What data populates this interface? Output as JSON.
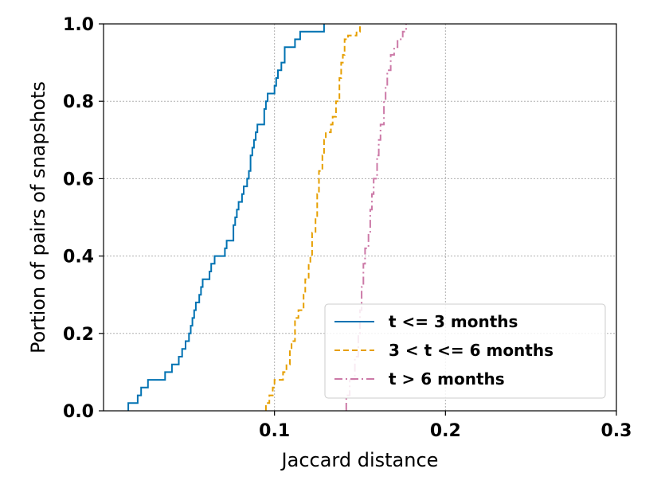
{
  "chart_data": {
    "type": "line",
    "step": true,
    "xlabel": "Jaccard distance",
    "ylabel": "Portion of pairs of snapshots",
    "xlim": [
      0.0,
      0.3
    ],
    "ylim": [
      0.0,
      1.0
    ],
    "xticks": [
      "0.1",
      "0.2",
      "0.3"
    ],
    "xtick_values": [
      0.1,
      0.2,
      0.3
    ],
    "yticks": [
      "0.0",
      "0.2",
      "0.4",
      "0.6",
      "0.8",
      "1.0"
    ],
    "ytick_values": [
      0.0,
      0.2,
      0.4,
      0.6,
      0.8,
      1.0
    ],
    "grid": true,
    "legend_position": "lower-right",
    "series": [
      {
        "name": "t <= 3 months",
        "color": "#0072b2",
        "linestyle": "solid",
        "points": [
          [
            0.0145,
            0.0
          ],
          [
            0.0145,
            0.02
          ],
          [
            0.02,
            0.02
          ],
          [
            0.02,
            0.04
          ],
          [
            0.022,
            0.04
          ],
          [
            0.022,
            0.06
          ],
          [
            0.026,
            0.06
          ],
          [
            0.026,
            0.08
          ],
          [
            0.036,
            0.08
          ],
          [
            0.036,
            0.1
          ],
          [
            0.04,
            0.1
          ],
          [
            0.04,
            0.12
          ],
          [
            0.044,
            0.12
          ],
          [
            0.044,
            0.14
          ],
          [
            0.046,
            0.14
          ],
          [
            0.046,
            0.16
          ],
          [
            0.048,
            0.16
          ],
          [
            0.048,
            0.18
          ],
          [
            0.05,
            0.18
          ],
          [
            0.05,
            0.2
          ],
          [
            0.051,
            0.2
          ],
          [
            0.051,
            0.22
          ],
          [
            0.052,
            0.22
          ],
          [
            0.052,
            0.24
          ],
          [
            0.053,
            0.24
          ],
          [
            0.053,
            0.26
          ],
          [
            0.054,
            0.26
          ],
          [
            0.054,
            0.28
          ],
          [
            0.056,
            0.28
          ],
          [
            0.056,
            0.3
          ],
          [
            0.057,
            0.3
          ],
          [
            0.057,
            0.32
          ],
          [
            0.058,
            0.32
          ],
          [
            0.058,
            0.34
          ],
          [
            0.062,
            0.34
          ],
          [
            0.062,
            0.36
          ],
          [
            0.063,
            0.36
          ],
          [
            0.063,
            0.38
          ],
          [
            0.065,
            0.38
          ],
          [
            0.065,
            0.4
          ],
          [
            0.071,
            0.4
          ],
          [
            0.071,
            0.42
          ],
          [
            0.072,
            0.42
          ],
          [
            0.072,
            0.44
          ],
          [
            0.076,
            0.44
          ],
          [
            0.076,
            0.48
          ],
          [
            0.077,
            0.48
          ],
          [
            0.077,
            0.5
          ],
          [
            0.078,
            0.5
          ],
          [
            0.078,
            0.52
          ],
          [
            0.079,
            0.52
          ],
          [
            0.079,
            0.54
          ],
          [
            0.081,
            0.54
          ],
          [
            0.081,
            0.56
          ],
          [
            0.082,
            0.56
          ],
          [
            0.082,
            0.58
          ],
          [
            0.084,
            0.58
          ],
          [
            0.084,
            0.6
          ],
          [
            0.085,
            0.6
          ],
          [
            0.085,
            0.62
          ],
          [
            0.086,
            0.62
          ],
          [
            0.086,
            0.66
          ],
          [
            0.087,
            0.66
          ],
          [
            0.087,
            0.68
          ],
          [
            0.088,
            0.68
          ],
          [
            0.088,
            0.7
          ],
          [
            0.089,
            0.7
          ],
          [
            0.089,
            0.72
          ],
          [
            0.09,
            0.72
          ],
          [
            0.09,
            0.74
          ],
          [
            0.094,
            0.74
          ],
          [
            0.094,
            0.78
          ],
          [
            0.095,
            0.78
          ],
          [
            0.095,
            0.8
          ],
          [
            0.096,
            0.8
          ],
          [
            0.096,
            0.82
          ],
          [
            0.1,
            0.82
          ],
          [
            0.1,
            0.84
          ],
          [
            0.101,
            0.84
          ],
          [
            0.101,
            0.86
          ],
          [
            0.102,
            0.86
          ],
          [
            0.102,
            0.88
          ],
          [
            0.104,
            0.88
          ],
          [
            0.104,
            0.9
          ],
          [
            0.106,
            0.9
          ],
          [
            0.106,
            0.94
          ],
          [
            0.112,
            0.94
          ],
          [
            0.112,
            0.96
          ],
          [
            0.115,
            0.96
          ],
          [
            0.115,
            0.98
          ],
          [
            0.129,
            0.98
          ],
          [
            0.129,
            1.0
          ]
        ]
      },
      {
        "name": "3 < t <= 6 months",
        "color": "#e69f00",
        "linestyle": "dashed",
        "points": [
          [
            0.095,
            0.0
          ],
          [
            0.095,
            0.02
          ],
          [
            0.097,
            0.02
          ],
          [
            0.097,
            0.04
          ],
          [
            0.099,
            0.04
          ],
          [
            0.099,
            0.06
          ],
          [
            0.1,
            0.06
          ],
          [
            0.1,
            0.08
          ],
          [
            0.105,
            0.08
          ],
          [
            0.105,
            0.1
          ],
          [
            0.107,
            0.1
          ],
          [
            0.107,
            0.12
          ],
          [
            0.109,
            0.12
          ],
          [
            0.109,
            0.16
          ],
          [
            0.11,
            0.16
          ],
          [
            0.11,
            0.18
          ],
          [
            0.112,
            0.18
          ],
          [
            0.112,
            0.24
          ],
          [
            0.114,
            0.24
          ],
          [
            0.114,
            0.26
          ],
          [
            0.117,
            0.26
          ],
          [
            0.117,
            0.3
          ],
          [
            0.118,
            0.3
          ],
          [
            0.118,
            0.34
          ],
          [
            0.12,
            0.34
          ],
          [
            0.12,
            0.38
          ],
          [
            0.121,
            0.38
          ],
          [
            0.121,
            0.4
          ],
          [
            0.122,
            0.4
          ],
          [
            0.122,
            0.46
          ],
          [
            0.124,
            0.46
          ],
          [
            0.124,
            0.5
          ],
          [
            0.125,
            0.5
          ],
          [
            0.125,
            0.56
          ],
          [
            0.126,
            0.56
          ],
          [
            0.126,
            0.62
          ],
          [
            0.128,
            0.62
          ],
          [
            0.128,
            0.66
          ],
          [
            0.129,
            0.66
          ],
          [
            0.129,
            0.7
          ],
          [
            0.13,
            0.7
          ],
          [
            0.13,
            0.72
          ],
          [
            0.133,
            0.72
          ],
          [
            0.133,
            0.74
          ],
          [
            0.134,
            0.74
          ],
          [
            0.134,
            0.76
          ],
          [
            0.136,
            0.76
          ],
          [
            0.136,
            0.8
          ],
          [
            0.138,
            0.8
          ],
          [
            0.138,
            0.86
          ],
          [
            0.139,
            0.86
          ],
          [
            0.139,
            0.9
          ],
          [
            0.14,
            0.9
          ],
          [
            0.14,
            0.92
          ],
          [
            0.141,
            0.92
          ],
          [
            0.141,
            0.96
          ],
          [
            0.143,
            0.96
          ],
          [
            0.143,
            0.97
          ],
          [
            0.148,
            0.97
          ],
          [
            0.148,
            0.98
          ],
          [
            0.15,
            0.98
          ],
          [
            0.15,
            1.0
          ]
        ]
      },
      {
        "name": "t > 6 months",
        "color": "#cc79a7",
        "linestyle": "dashdot",
        "points": [
          [
            0.142,
            0.0
          ],
          [
            0.142,
            0.04
          ],
          [
            0.144,
            0.04
          ],
          [
            0.144,
            0.08
          ],
          [
            0.147,
            0.08
          ],
          [
            0.147,
            0.14
          ],
          [
            0.149,
            0.14
          ],
          [
            0.149,
            0.2
          ],
          [
            0.15,
            0.2
          ],
          [
            0.15,
            0.26
          ],
          [
            0.151,
            0.26
          ],
          [
            0.151,
            0.32
          ],
          [
            0.152,
            0.32
          ],
          [
            0.152,
            0.38
          ],
          [
            0.153,
            0.38
          ],
          [
            0.153,
            0.42
          ],
          [
            0.155,
            0.42
          ],
          [
            0.155,
            0.46
          ],
          [
            0.156,
            0.46
          ],
          [
            0.156,
            0.52
          ],
          [
            0.157,
            0.52
          ],
          [
            0.157,
            0.56
          ],
          [
            0.158,
            0.56
          ],
          [
            0.158,
            0.6
          ],
          [
            0.16,
            0.6
          ],
          [
            0.16,
            0.66
          ],
          [
            0.161,
            0.66
          ],
          [
            0.161,
            0.7
          ],
          [
            0.162,
            0.7
          ],
          [
            0.162,
            0.74
          ],
          [
            0.164,
            0.74
          ],
          [
            0.164,
            0.8
          ],
          [
            0.165,
            0.8
          ],
          [
            0.165,
            0.84
          ],
          [
            0.166,
            0.84
          ],
          [
            0.166,
            0.88
          ],
          [
            0.168,
            0.88
          ],
          [
            0.168,
            0.92
          ],
          [
            0.17,
            0.92
          ],
          [
            0.17,
            0.94
          ],
          [
            0.172,
            0.94
          ],
          [
            0.172,
            0.96
          ],
          [
            0.175,
            0.96
          ],
          [
            0.175,
            0.98
          ],
          [
            0.177,
            0.98
          ],
          [
            0.177,
            1.0
          ]
        ]
      }
    ]
  }
}
